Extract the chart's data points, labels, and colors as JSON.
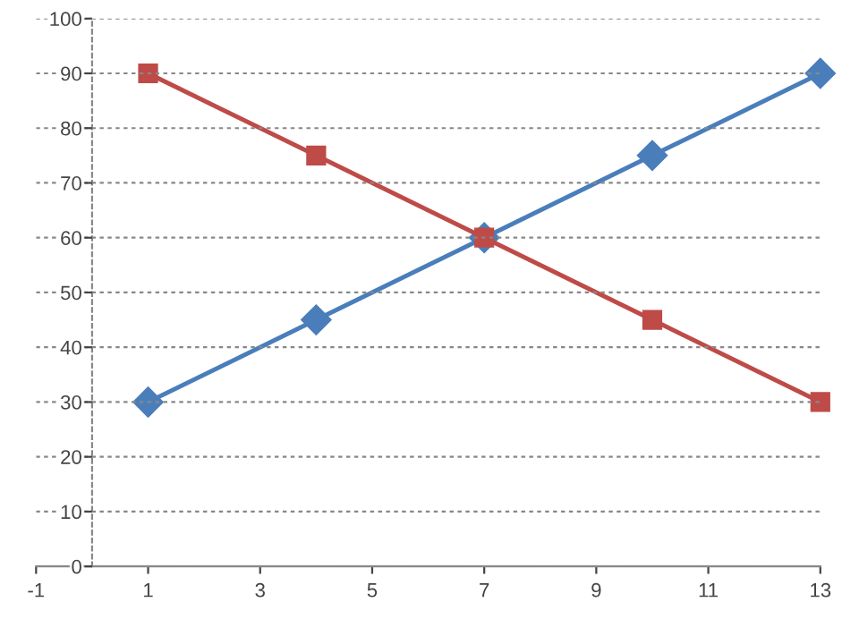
{
  "chart_data": {
    "type": "line",
    "series": [
      {
        "color": "#4a7ebb",
        "marker": "diamond",
        "x": [
          1,
          4,
          7,
          10,
          13
        ],
        "values": [
          30,
          45,
          60,
          75,
          90
        ]
      },
      {
        "color": "#be4b48",
        "marker": "square",
        "x": [
          1,
          4,
          7,
          10,
          13
        ],
        "values": [
          90,
          75,
          60,
          45,
          30
        ]
      }
    ],
    "xlim": [
      -1,
      13
    ],
    "xticks": [
      -1,
      1,
      3,
      5,
      7,
      9,
      11,
      13
    ],
    "ylim": [
      0,
      100
    ],
    "yticks": [
      0,
      10,
      20,
      30,
      40,
      50,
      60,
      70,
      80,
      90,
      100
    ],
    "grid": "y",
    "line_style": "solid"
  }
}
